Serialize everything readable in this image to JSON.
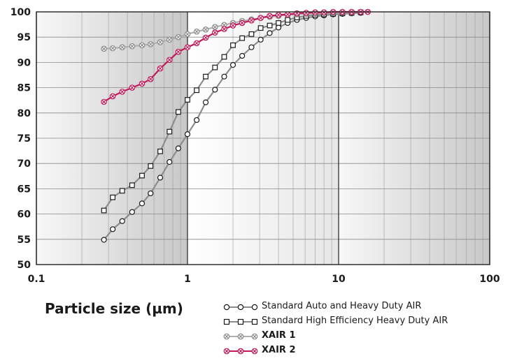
{
  "chart_data": {
    "type": "line",
    "xlabel": "Particle size (µm)",
    "ylabel": "",
    "x_scale": "log",
    "xlim": [
      0.1,
      100
    ],
    "ylim": [
      50,
      100
    ],
    "x_ticks": [
      "0.1",
      "1",
      "10",
      "100"
    ],
    "y_ticks": [
      "50",
      "55",
      "60",
      "65",
      "70",
      "75",
      "80",
      "85",
      "90",
      "95",
      "100"
    ],
    "grid": true,
    "legend_position": "bottom-right",
    "series": [
      {
        "name": "Standard Auto and Heavy Duty AIR",
        "marker": "circle",
        "line_color": "#8c8c8c",
        "marker_color": "#1a1a1a",
        "x": [
          0.28,
          0.32,
          0.37,
          0.43,
          0.5,
          0.57,
          0.66,
          0.76,
          0.87,
          1.0,
          1.15,
          1.32,
          1.52,
          1.75,
          2.0,
          2.3,
          2.65,
          3.05,
          3.5,
          4.0,
          4.6,
          5.3,
          6.1,
          7.0,
          8.0,
          9.2,
          10.6,
          12.2,
          14.0
        ],
        "y": [
          54.9,
          57.0,
          58.6,
          60.4,
          62.1,
          64.1,
          67.2,
          70.3,
          73.0,
          75.8,
          78.6,
          82.1,
          84.6,
          87.2,
          89.5,
          91.3,
          93.0,
          94.5,
          95.8,
          96.9,
          97.8,
          98.4,
          98.8,
          99.1,
          99.3,
          99.5,
          99.6,
          99.7,
          99.8
        ]
      },
      {
        "name": "Standard High Efficiency Heavy Duty AIR",
        "marker": "square",
        "line_color": "#8c8c8c",
        "marker_color": "#1a1a1a",
        "x": [
          0.28,
          0.32,
          0.37,
          0.43,
          0.5,
          0.57,
          0.66,
          0.76,
          0.87,
          1.0,
          1.15,
          1.32,
          1.52,
          1.75,
          2.0,
          2.3,
          2.65,
          3.05,
          3.5,
          4.0,
          4.6,
          5.3,
          6.1,
          7.0,
          8.0,
          9.2,
          10.6,
          12.2,
          14.0
        ],
        "y": [
          60.7,
          63.3,
          64.6,
          65.7,
          67.6,
          69.5,
          72.4,
          76.3,
          80.2,
          82.6,
          84.5,
          87.2,
          89.0,
          91.1,
          93.4,
          94.8,
          95.6,
          96.8,
          97.3,
          97.8,
          98.4,
          98.9,
          99.2,
          99.4,
          99.5,
          99.6,
          99.7,
          99.8,
          99.9
        ]
      },
      {
        "name": "XAIR 1",
        "marker": "circle-x",
        "line_color": "#b0b0b0",
        "marker_color": "#8c8c8c",
        "x": [
          0.28,
          0.32,
          0.37,
          0.43,
          0.5,
          0.57,
          0.66,
          0.76,
          0.87,
          1.0,
          1.15,
          1.32,
          1.52,
          1.75,
          2.0,
          2.3,
          2.65,
          3.05,
          3.5,
          4.0,
          4.6,
          5.3,
          6.1,
          7.0,
          8.0,
          9.2,
          10.6,
          12.2,
          14.0,
          15.6
        ],
        "y": [
          92.7,
          92.8,
          93.0,
          93.2,
          93.4,
          93.6,
          94.0,
          94.5,
          95.0,
          95.6,
          96.1,
          96.5,
          97.0,
          97.4,
          97.8,
          98.2,
          98.5,
          98.8,
          99.0,
          99.2,
          99.4,
          99.5,
          99.6,
          99.7,
          99.8,
          99.8,
          99.9,
          99.9,
          100.0,
          100.0
        ]
      },
      {
        "name": "XAIR 2",
        "marker": "circle-x",
        "line_color": "#c2185b",
        "marker_color": "#c2185b",
        "x": [
          0.28,
          0.32,
          0.37,
          0.43,
          0.5,
          0.57,
          0.66,
          0.76,
          0.87,
          1.0,
          1.15,
          1.32,
          1.52,
          1.75,
          2.0,
          2.3,
          2.65,
          3.05,
          3.5,
          4.0,
          4.6,
          5.3,
          6.1,
          7.0,
          8.0,
          9.2,
          10.6,
          12.2,
          14.0,
          15.6
        ],
        "y": [
          82.2,
          83.3,
          84.2,
          85.0,
          85.8,
          86.7,
          88.8,
          90.5,
          92.1,
          93.0,
          93.8,
          94.9,
          95.9,
          96.6,
          97.3,
          97.8,
          98.3,
          98.8,
          99.2,
          99.4,
          99.5,
          99.7,
          99.8,
          99.9,
          99.9,
          100.0,
          100.0,
          100.0,
          100.0,
          100.0
        ]
      }
    ]
  }
}
